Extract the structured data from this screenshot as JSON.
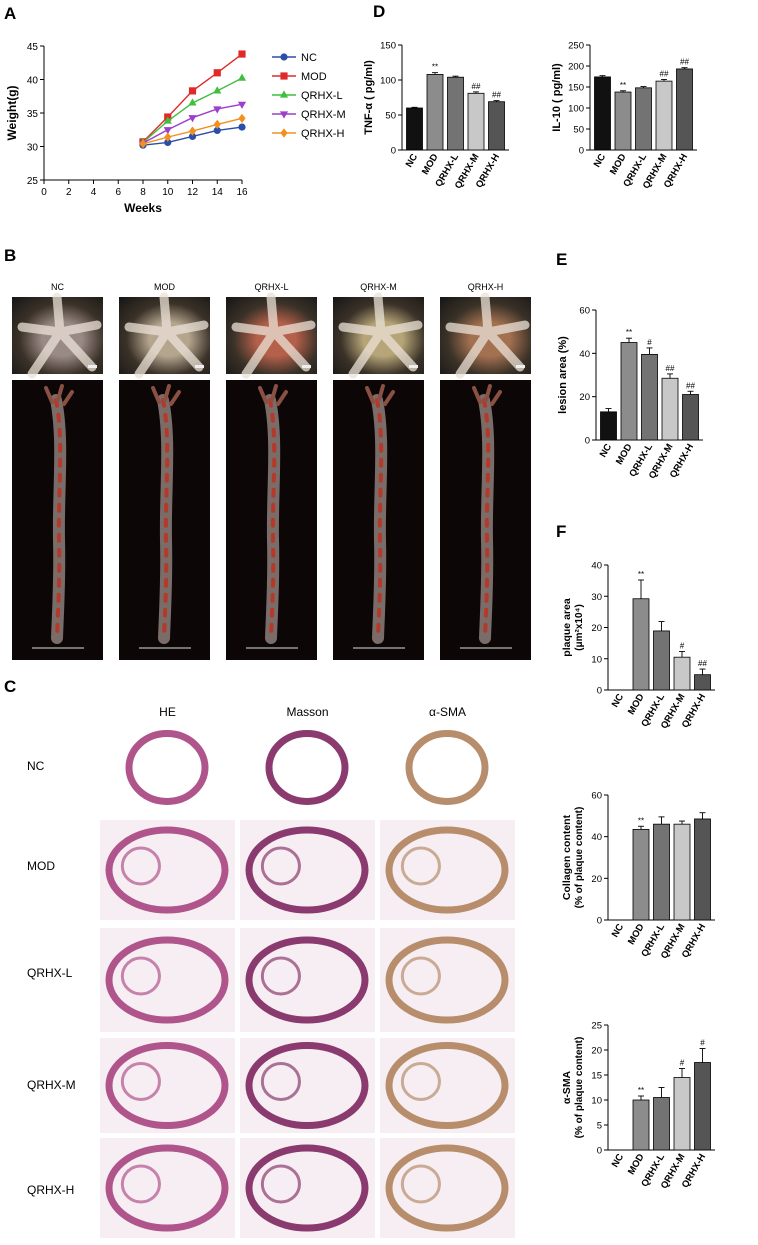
{
  "panels": {
    "A": "A",
    "B": "B",
    "C": "C",
    "D": "D",
    "E": "E",
    "F": "F"
  },
  "panel_b": {
    "groups": [
      "NC",
      "MOD",
      "QRHX-L",
      "QRHX-M",
      "QRHX-H"
    ],
    "photo_colors": [
      "#9a8a86",
      "#b4a58e",
      "#b4604a",
      "#b6a578",
      "#a47150"
    ]
  },
  "panel_c": {
    "columns": [
      "HE",
      "Masson",
      "α-SMA"
    ],
    "rows": [
      "NC",
      "MOD",
      "QRHX-L",
      "QRHX-M",
      "QRHX-H"
    ],
    "stain_colors": {
      "HE": "#b0548c",
      "Masson": "#8a3a6e",
      "α-SMA": "#b78d6c"
    }
  },
  "chart_data": [
    {
      "id": "weight",
      "type": "line",
      "xlabel": "Weeks",
      "ylabel": "Weight(g)",
      "x": [
        8,
        10,
        12,
        14,
        16
      ],
      "xlim": [
        0,
        16
      ],
      "xticks": [
        0,
        2,
        4,
        6,
        8,
        10,
        12,
        14,
        16
      ],
      "ylim": [
        25,
        45
      ],
      "yticks": [
        25,
        30,
        35,
        40,
        45
      ],
      "series": [
        {
          "name": "NC",
          "color": "#2b4fa8",
          "marker": "circle",
          "values": [
            30.2,
            30.6,
            31.5,
            32.4,
            32.9
          ]
        },
        {
          "name": "MOD",
          "color": "#e02a2a",
          "marker": "square",
          "values": [
            30.7,
            34.4,
            38.3,
            41.0,
            43.8
          ]
        },
        {
          "name": "QRHX-L",
          "color": "#3fbf3f",
          "marker": "triangle-up",
          "values": [
            30.6,
            33.8,
            36.5,
            38.3,
            40.2
          ]
        },
        {
          "name": "QRHX-M",
          "color": "#9b3fcc",
          "marker": "triangle-down",
          "values": [
            30.5,
            32.5,
            34.3,
            35.6,
            36.3
          ]
        },
        {
          "name": "QRHX-H",
          "color": "#f2901e",
          "marker": "diamond",
          "values": [
            30.4,
            31.4,
            32.3,
            33.3,
            34.2
          ]
        }
      ]
    },
    {
      "id": "tnf",
      "type": "bar",
      "ylabel": "TNF-α ( pg/ml)",
      "categories": [
        "NC",
        "MOD",
        "QRHX-L",
        "QRHX-M",
        "QRHX-H"
      ],
      "values": [
        60,
        108,
        104,
        81,
        69
      ],
      "errors": [
        1,
        2.5,
        1.5,
        2,
        1.5
      ],
      "annotations": [
        "",
        "**",
        "",
        "##",
        "##"
      ],
      "ylim": [
        0,
        150
      ],
      "yticks": [
        0,
        50,
        100,
        150
      ],
      "colors": [
        "#111111",
        "#8c8c8c",
        "#737373",
        "#c8c8c8",
        "#555555"
      ]
    },
    {
      "id": "il10",
      "type": "bar",
      "ylabel": "IL-10 ( pg/ml)",
      "categories": [
        "NC",
        "MOD",
        "QRHX-L",
        "QRHX-M",
        "QRHX-H"
      ],
      "values": [
        174,
        138,
        148,
        164,
        193
      ],
      "errors": [
        3,
        3,
        3,
        4,
        3
      ],
      "annotations": [
        "",
        "**",
        "",
        "##",
        "##"
      ],
      "ylim": [
        0,
        250
      ],
      "yticks": [
        0,
        50,
        100,
        150,
        200,
        250
      ],
      "colors": [
        "#111111",
        "#8c8c8c",
        "#737373",
        "#c8c8c8",
        "#555555"
      ]
    },
    {
      "id": "lesion",
      "type": "bar",
      "ylabel": "lesion area (%)",
      "categories": [
        "NC",
        "MOD",
        "QRHX-L",
        "QRHX-M",
        "QRHX-H"
      ],
      "values": [
        13,
        45,
        39.5,
        28.5,
        21
      ],
      "errors": [
        1.5,
        2,
        3,
        2,
        1.5
      ],
      "annotations": [
        "",
        "**",
        "#",
        "##",
        "##"
      ],
      "ylim": [
        0,
        60
      ],
      "yticks": [
        0,
        20,
        40,
        60
      ],
      "colors": [
        "#111111",
        "#8c8c8c",
        "#737373",
        "#c8c8c8",
        "#555555"
      ]
    },
    {
      "id": "plaque",
      "type": "bar",
      "ylabel": "plaque area",
      "ylabel2": "(μm²x10⁴)",
      "categories": [
        "NC",
        "MOD",
        "QRHX-L",
        "QRHX-M",
        "QRHX-H"
      ],
      "values": [
        0,
        29.2,
        18.9,
        10.5,
        4.9
      ],
      "errors": [
        0,
        6,
        3,
        1.8,
        1.8
      ],
      "annotations": [
        "",
        "**",
        "",
        "#",
        "##"
      ],
      "ylim": [
        0,
        40
      ],
      "yticks": [
        0,
        10,
        20,
        30,
        40
      ],
      "colors": [
        "#111111",
        "#8c8c8c",
        "#737373",
        "#c8c8c8",
        "#555555"
      ]
    },
    {
      "id": "collagen",
      "type": "bar",
      "ylabel": "Collagen content",
      "ylabel2": "(% of plaque content)",
      "categories": [
        "NC",
        "MOD",
        "QRHX-L",
        "QRHX-M",
        "QRHX-H"
      ],
      "values": [
        0,
        43.5,
        46,
        46,
        48.5
      ],
      "errors": [
        0,
        1.5,
        3.5,
        1.5,
        3
      ],
      "annotations": [
        "",
        "**",
        "",
        "",
        ""
      ],
      "ylim": [
        0,
        60
      ],
      "yticks": [
        0,
        20,
        40,
        60
      ],
      "colors": [
        "#111111",
        "#8c8c8c",
        "#737373",
        "#c8c8c8",
        "#555555"
      ]
    },
    {
      "id": "asma",
      "type": "bar",
      "ylabel": "α-SMA",
      "ylabel2": "(% of plaque content)",
      "categories": [
        "NC",
        "MOD",
        "QRHX-L",
        "QRHX-M",
        "QRHX-H"
      ],
      "values": [
        0,
        10,
        10.5,
        14.5,
        17.5
      ],
      "errors": [
        0,
        0.8,
        2,
        1.8,
        2.8
      ],
      "annotations": [
        "",
        "**",
        "",
        "#",
        "#"
      ],
      "ylim": [
        0,
        25
      ],
      "yticks": [
        0,
        5,
        10,
        15,
        20,
        25
      ],
      "colors": [
        "#111111",
        "#8c8c8c",
        "#737373",
        "#c8c8c8",
        "#555555"
      ]
    }
  ]
}
